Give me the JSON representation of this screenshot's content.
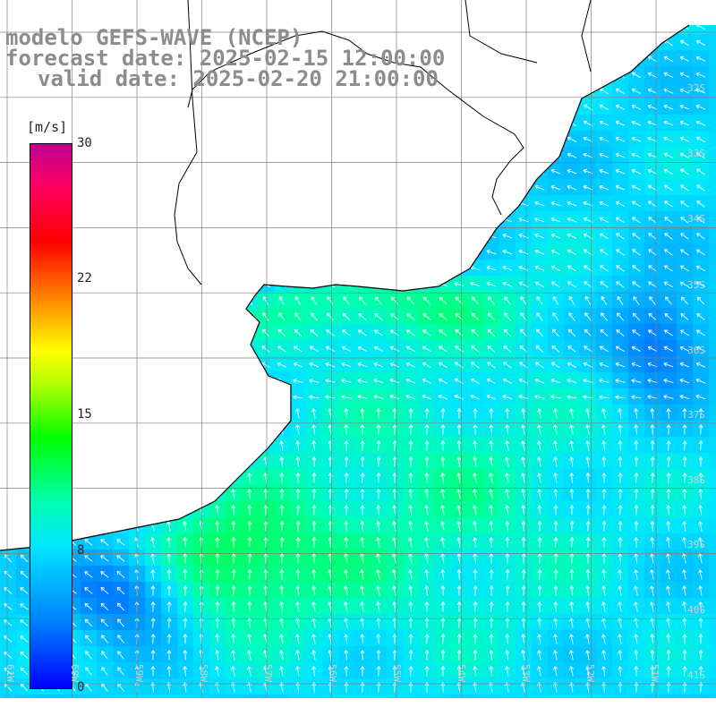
{
  "header": {
    "model": "modelo GEFS-WAVE (NCEP)",
    "forecast": "forecast date: 2025-02-15 12:00:00",
    "valid": "valid date: 2025-02-20 21:00:00"
  },
  "colorbar": {
    "unit": "[m/s]",
    "ticks": [
      "30",
      "22",
      "15",
      "8",
      "0"
    ],
    "min": 0,
    "max": 30
  },
  "latitude_labels": [
    "32S",
    "33S",
    "34S",
    "35S",
    "36S",
    "37S",
    "38S",
    "39S",
    "40S",
    "41S"
  ],
  "longitude_labels": [
    "61W",
    "60W",
    "59W",
    "58W",
    "57W",
    "56W",
    "55W",
    "54W",
    "53W",
    "52W",
    "51W"
  ],
  "colors": {
    "land": "#ffffff",
    "coast": "#000000",
    "grid": "#808080",
    "arrow": "#ffffff"
  }
}
